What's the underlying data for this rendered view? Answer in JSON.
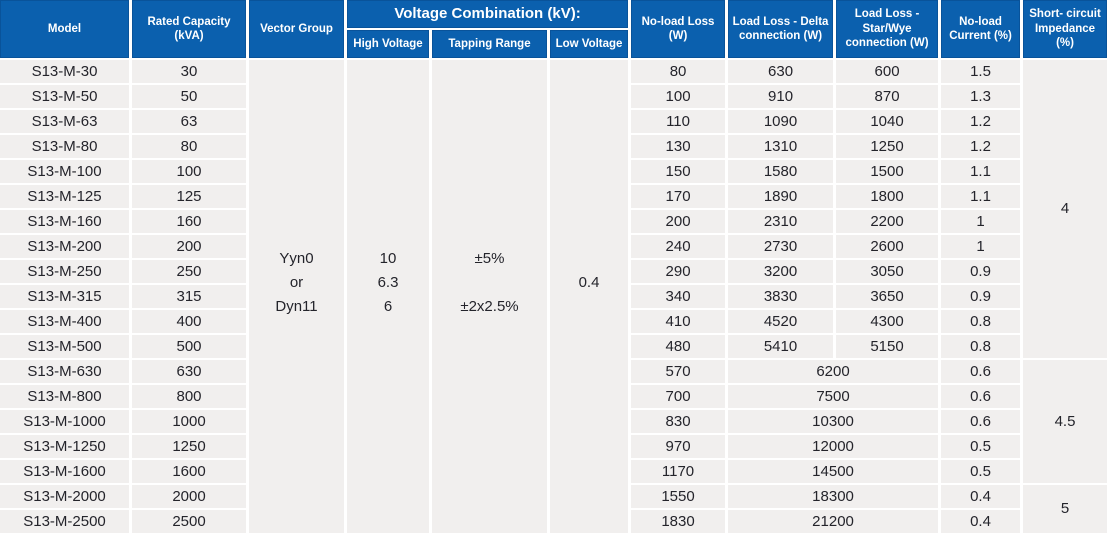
{
  "colors": {
    "header_bg": "#0b60ae",
    "header_text": "#ffffff",
    "row_bg": "#f1efee",
    "grid_lines": "#ffffff",
    "body_text": "#24242b"
  },
  "table": {
    "header": {
      "model": "Model",
      "rated_capacity": "Rated Capacity\n(kVA)",
      "vector_group": "Vector Group",
      "voltage_combination": "Voltage Combination (kV):",
      "high_voltage": "High Voltage",
      "tapping_range": "Tapping Range",
      "low_voltage": "Low Voltage",
      "no_load_loss": "No-load Loss\n(W)",
      "load_loss_delta": "Load Loss - Delta\nconnection (W)",
      "load_loss_star": "Load Loss -\nStar/Wye\nconnection (W)",
      "no_load_current": "No-load\nCurrent (%)",
      "short_circuit_impedance": "Short- circuit\nImpedance\n(%)"
    },
    "merged": {
      "vector_group": "Yyn0\nor\nDyn11",
      "high_voltage": "10\n6.3\n6",
      "tapping_range": "±5%\n\n±2x2.5%",
      "low_voltage": "0.4"
    },
    "rows": [
      {
        "model": "S13-M-30",
        "capacity": "30",
        "no_load_loss": "80",
        "load_loss_delta": "630",
        "load_loss_star": "600",
        "no_load_current": "1.5"
      },
      {
        "model": "S13-M-50",
        "capacity": "50",
        "no_load_loss": "100",
        "load_loss_delta": "910",
        "load_loss_star": "870",
        "no_load_current": "1.3"
      },
      {
        "model": "S13-M-63",
        "capacity": "63",
        "no_load_loss": "110",
        "load_loss_delta": "1090",
        "load_loss_star": "1040",
        "no_load_current": "1.2"
      },
      {
        "model": "S13-M-80",
        "capacity": "80",
        "no_load_loss": "130",
        "load_loss_delta": "1310",
        "load_loss_star": "1250",
        "no_load_current": "1.2"
      },
      {
        "model": "S13-M-100",
        "capacity": "100",
        "no_load_loss": "150",
        "load_loss_delta": "1580",
        "load_loss_star": "1500",
        "no_load_current": "1.1"
      },
      {
        "model": "S13-M-125",
        "capacity": "125",
        "no_load_loss": "170",
        "load_loss_delta": "1890",
        "load_loss_star": "1800",
        "no_load_current": "1.1"
      },
      {
        "model": "S13-M-160",
        "capacity": "160",
        "no_load_loss": "200",
        "load_loss_delta": "2310",
        "load_loss_star": "2200",
        "no_load_current": "1"
      },
      {
        "model": "S13-M-200",
        "capacity": "200",
        "no_load_loss": "240",
        "load_loss_delta": "2730",
        "load_loss_star": "2600",
        "no_load_current": "1"
      },
      {
        "model": "S13-M-250",
        "capacity": "250",
        "no_load_loss": "290",
        "load_loss_delta": "3200",
        "load_loss_star": "3050",
        "no_load_current": "0.9"
      },
      {
        "model": "S13-M-315",
        "capacity": "315",
        "no_load_loss": "340",
        "load_loss_delta": "3830",
        "load_loss_star": "3650",
        "no_load_current": "0.9"
      },
      {
        "model": "S13-M-400",
        "capacity": "400",
        "no_load_loss": "410",
        "load_loss_delta": "4520",
        "load_loss_star": "4300",
        "no_load_current": "0.8"
      },
      {
        "model": "S13-M-500",
        "capacity": "500",
        "no_load_loss": "480",
        "load_loss_delta": "5410",
        "load_loss_star": "5150",
        "no_load_current": "0.8"
      },
      {
        "model": "S13-M-630",
        "capacity": "630",
        "no_load_loss": "570",
        "load_loss_combined": "6200",
        "no_load_current": "0.6"
      },
      {
        "model": "S13-M-800",
        "capacity": "800",
        "no_load_loss": "700",
        "load_loss_combined": "7500",
        "no_load_current": "0.6"
      },
      {
        "model": "S13-M-1000",
        "capacity": "1000",
        "no_load_loss": "830",
        "load_loss_combined": "10300",
        "no_load_current": "0.6"
      },
      {
        "model": "S13-M-1250",
        "capacity": "1250",
        "no_load_loss": "970",
        "load_loss_combined": "12000",
        "no_load_current": "0.5"
      },
      {
        "model": "S13-M-1600",
        "capacity": "1600",
        "no_load_loss": "1170",
        "load_loss_combined": "14500",
        "no_load_current": "0.5"
      },
      {
        "model": "S13-M-2000",
        "capacity": "2000",
        "no_load_loss": "1550",
        "load_loss_combined": "18300",
        "no_load_current": "0.4"
      },
      {
        "model": "S13-M-2500",
        "capacity": "2500",
        "no_load_loss": "1830",
        "load_loss_combined": "21200",
        "no_load_current": "0.4"
      }
    ],
    "impedance_groups": [
      {
        "value": "4",
        "row_span": 12
      },
      {
        "value": "4.5",
        "row_span": 5
      },
      {
        "value": "5",
        "row_span": 2
      }
    ]
  }
}
